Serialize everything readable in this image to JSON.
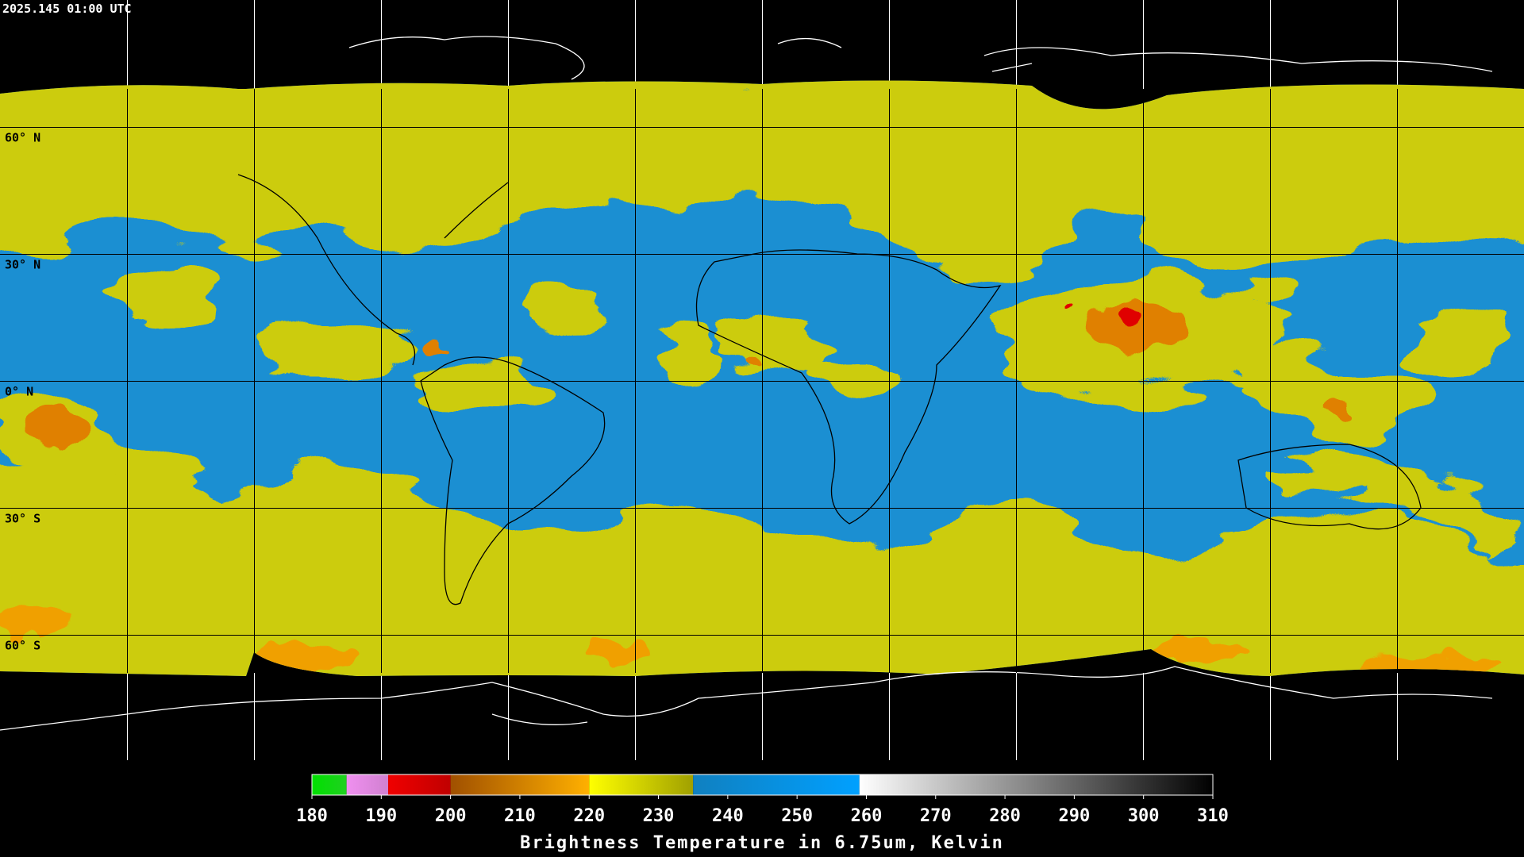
{
  "header": {
    "timestamp": "2025.145 01:00 UTC"
  },
  "latitude_labels": [
    "60° N",
    "30° N",
    "0° N",
    "30° S",
    "60° S"
  ],
  "colorbar": {
    "ticks": [
      180,
      190,
      200,
      210,
      220,
      230,
      240,
      250,
      260,
      270,
      280,
      290,
      300,
      310
    ],
    "label": "Brightness Temperature in 6.75um, Kelvin",
    "bands": [
      {
        "from": 180,
        "to": 185,
        "colors": [
          "#00e000",
          "#20d020"
        ]
      },
      {
        "from": 185,
        "to": 191,
        "colors": [
          "#f090f0",
          "#d080d0"
        ]
      },
      {
        "from": 191,
        "to": 200,
        "colors": [
          "#f00000",
          "#c00000"
        ]
      },
      {
        "from": 200,
        "to": 220,
        "colors": [
          "#a05000",
          "#ffb000"
        ]
      },
      {
        "from": 220,
        "to": 235,
        "colors": [
          "#ffff00",
          "#a0a000"
        ]
      },
      {
        "from": 235,
        "to": 259,
        "colors": [
          "#1080c0",
          "#00a0ff"
        ]
      },
      {
        "from": 259,
        "to": 310,
        "colors": [
          "#ffffff",
          "#000000"
        ]
      }
    ]
  }
}
